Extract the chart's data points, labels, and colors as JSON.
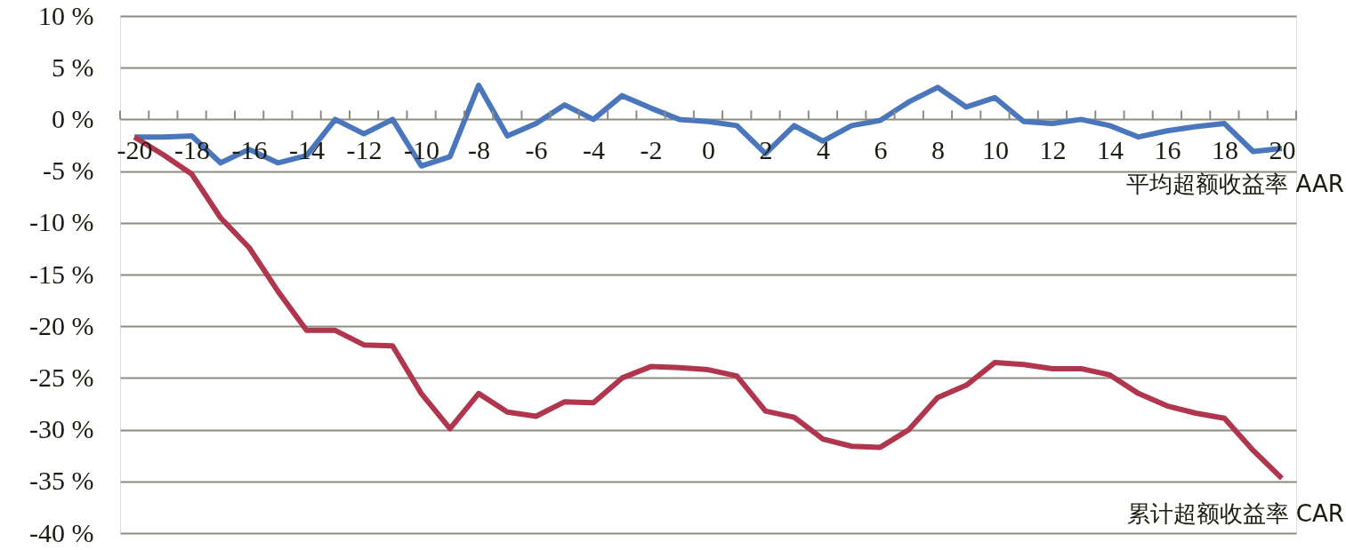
{
  "chart_data": {
    "type": "line",
    "xlim": [
      -20.5,
      20.5
    ],
    "ylim": [
      -40,
      10
    ],
    "x": [
      -20,
      -19,
      -18,
      -17,
      -16,
      -15,
      -14,
      -13,
      -12,
      -11,
      -10,
      -9,
      -8,
      -7,
      -6,
      -5,
      -4,
      -3,
      -2,
      -1,
      0,
      1,
      2,
      3,
      4,
      5,
      6,
      7,
      8,
      9,
      10,
      11,
      12,
      13,
      14,
      15,
      16,
      17,
      18,
      19,
      20
    ],
    "xticks": [
      {
        "value": -20.5,
        "label": null
      },
      -20,
      {
        "value": -19.5,
        "label": null
      },
      {
        "value": -18.5,
        "label": null
      },
      -18,
      {
        "value": -17.5,
        "label": null
      },
      {
        "value": -16.5,
        "label": null
      },
      -16,
      {
        "value": -15.5,
        "label": null
      },
      {
        "value": -14.5,
        "label": null
      },
      -14,
      {
        "value": -13.5,
        "label": null
      },
      {
        "value": -12.5,
        "label": null
      },
      -12,
      {
        "value": -11.5,
        "label": null
      },
      {
        "value": -10.5,
        "label": null
      },
      -10,
      {
        "value": -9.5,
        "label": null
      },
      {
        "value": -8.5,
        "label": null
      },
      -8,
      {
        "value": -7.5,
        "label": null
      },
      {
        "value": -6.5,
        "label": null
      },
      -6,
      {
        "value": -5.5,
        "label": null
      },
      {
        "value": -4.5,
        "label": null
      },
      -4,
      {
        "value": -3.5,
        "label": null
      },
      {
        "value": -2.5,
        "label": null
      },
      -2,
      {
        "value": -1.5,
        "label": null
      },
      {
        "value": -0.5,
        "label": null
      },
      0,
      {
        "value": 0.5,
        "label": null
      },
      {
        "value": 1.5,
        "label": null
      },
      2,
      {
        "value": 2.5,
        "label": null
      },
      {
        "value": 3.5,
        "label": null
      },
      4,
      {
        "value": 4.5,
        "label": null
      },
      {
        "value": 5.5,
        "label": null
      },
      6,
      {
        "value": 6.5,
        "label": null
      },
      {
        "value": 7.5,
        "label": null
      },
      8,
      {
        "value": 8.5,
        "label": null
      },
      {
        "value": 9.5,
        "label": null
      },
      10,
      {
        "value": 10.5,
        "label": null
      },
      {
        "value": 11.5,
        "label": null
      },
      12,
      {
        "value": 12.5,
        "label": null
      },
      {
        "value": 13.5,
        "label": null
      },
      14,
      {
        "value": 14.5,
        "label": null
      },
      {
        "value": 15.5,
        "label": null
      },
      16,
      {
        "value": 16.5,
        "label": null
      },
      {
        "value": 17.5,
        "label": null
      },
      18,
      {
        "value": 18.5,
        "label": null
      },
      {
        "value": 19.5,
        "label": null
      },
      20,
      {
        "value": 20.5,
        "label": null
      }
    ],
    "yticks": [
      {
        "value": 10,
        "label": "10 %"
      },
      {
        "value": 5,
        "label": "5 %"
      },
      {
        "value": 0,
        "label": "0 %"
      },
      {
        "value": -5,
        "label": "-5 %"
      },
      {
        "value": -10,
        "label": "-10 %"
      },
      {
        "value": -15,
        "label": "-15 %"
      },
      {
        "value": -20,
        "label": "-20 %"
      },
      {
        "value": -25,
        "label": "-25 %"
      },
      {
        "value": -30,
        "label": "-30 %"
      },
      {
        "value": -35,
        "label": "-35 %"
      },
      {
        "value": -40,
        "label": "-40 %"
      }
    ],
    "grid": "y",
    "line_style": "solid",
    "marker": "none",
    "series": [
      {
        "name": "平均超额收益率 AAR",
        "color": "#4a76bb",
        "values": [
          -1.7,
          -1.7,
          -1.6,
          -4.2,
          -2.9,
          -4.2,
          -3.5,
          0,
          -1.4,
          0,
          -4.5,
          -3.6,
          3.3,
          -1.6,
          -0.4,
          1.4,
          0,
          2.3,
          1.1,
          0,
          -0.2,
          -0.6,
          -3.3,
          -0.6,
          -2.1,
          -0.6,
          -0.1,
          1.7,
          3.1,
          1.2,
          2.1,
          -0.2,
          -0.4,
          0,
          -0.6,
          -1.7,
          -1.1,
          -0.7,
          -0.4,
          -3.1,
          -2.8
        ]
      },
      {
        "name": "累计超额收益率 CAR",
        "color": "#b0364e",
        "values": [
          -1.7,
          -3.4,
          -5.3,
          -9.5,
          -12.4,
          -16.6,
          -20.4,
          -20.4,
          -21.8,
          -21.9,
          -26.5,
          -29.9,
          -26.5,
          -28.3,
          -28.7,
          -27.3,
          -27.4,
          -25.0,
          -23.9,
          -24.0,
          -24.2,
          -24.8,
          -28.2,
          -28.8,
          -30.9,
          -31.6,
          -31.7,
          -30.0,
          -26.9,
          -25.7,
          -23.5,
          -23.7,
          -24.1,
          -24.1,
          -24.7,
          -26.5,
          -27.7,
          -28.4,
          -28.9,
          -32.0,
          -34.7
        ]
      }
    ]
  }
}
